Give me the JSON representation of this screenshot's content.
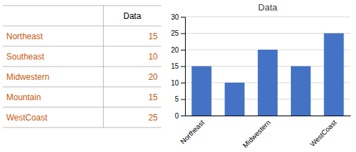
{
  "chart_data": [
    {
      "type": "table",
      "title": "Data",
      "categories": [
        "Northeast",
        "Southeast",
        "Midwestern",
        "Mountain",
        "WestCoast"
      ],
      "values": [
        15,
        10,
        20,
        15,
        25
      ],
      "color": "#C55A11"
    },
    {
      "type": "bar",
      "title": "Data",
      "categories": [
        "Northeast",
        null,
        "Midwestern",
        null,
        "WestCoast"
      ],
      "values": [
        15,
        10,
        20,
        15,
        25
      ],
      "color": "#4472C4",
      "ylim": [
        0,
        30
      ],
      "yticks": [
        0,
        5,
        10,
        15,
        20,
        25,
        30
      ],
      "grid": true
    }
  ]
}
